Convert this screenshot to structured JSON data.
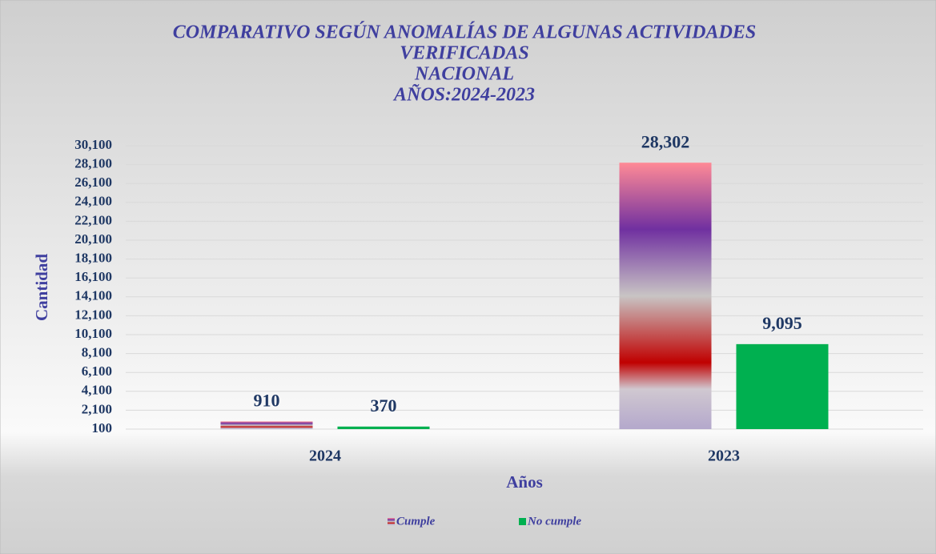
{
  "chart_data": {
    "type": "bar",
    "title": [
      "COMPARATIVO SEGÚN ANOMALÍAS DE ALGUNAS ACTIVIDADES",
      "VERIFICADAS",
      "NACIONAL",
      "AÑOS:2024-2023"
    ],
    "x_label": "Años",
    "y_label": "Cantidad",
    "categories": [
      "2024",
      "2023"
    ],
    "series": [
      {
        "name": "Cumple",
        "color": "#7030a0",
        "values": [
          910,
          28302
        ],
        "value_labels": [
          "910",
          "28,302"
        ]
      },
      {
        "name": "No cumple",
        "color": "#00b050",
        "values": [
          370,
          9095
        ],
        "value_labels": [
          "370",
          "9,095"
        ]
      }
    ],
    "ylim": [
      100,
      30100
    ],
    "yticks": [
      {
        "value": 100,
        "label": "100"
      },
      {
        "value": 2100,
        "label": "2,100"
      },
      {
        "value": 4100,
        "label": "4,100"
      },
      {
        "value": 6100,
        "label": "6,100"
      },
      {
        "value": 8100,
        "label": "8,100"
      },
      {
        "value": 10100,
        "label": "10,100"
      },
      {
        "value": 12100,
        "label": "12,100"
      },
      {
        "value": 14100,
        "label": "14,100"
      },
      {
        "value": 16100,
        "label": "16,100"
      },
      {
        "value": 18100,
        "label": "18,100"
      },
      {
        "value": 20100,
        "label": "20,100"
      },
      {
        "value": 22100,
        "label": "22,100"
      },
      {
        "value": 24100,
        "label": "24,100"
      },
      {
        "value": 26100,
        "label": "26,100"
      },
      {
        "value": 28100,
        "label": "28,100"
      },
      {
        "value": 30100,
        "label": "30,100"
      }
    ],
    "grid": true,
    "legend": "bottom"
  }
}
